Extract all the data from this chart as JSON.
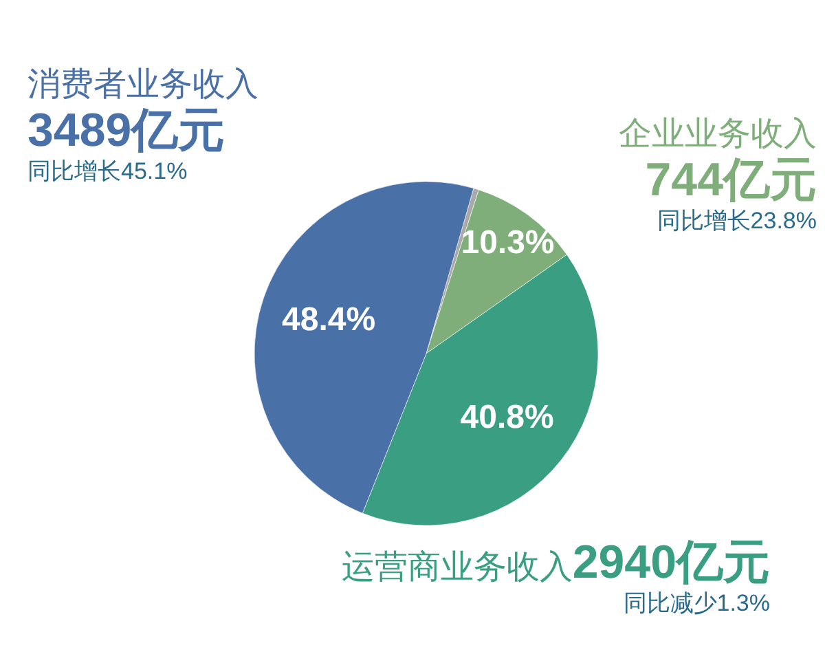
{
  "chart_data": {
    "type": "pie",
    "categories": [
      null,
      "企业业务收入",
      "运营商业务收入",
      "消费者业务收入"
    ],
    "values": [
      0.5,
      10.3,
      40.8,
      48.4
    ],
    "colors": [
      "#a9a9a9",
      "#7fae7a",
      "#3a9e82",
      "#4a70a8"
    ],
    "value_labels": [
      null,
      "10.3%",
      "40.8%",
      "48.4%"
    ],
    "annotations": [
      "744亿元",
      "同比增长23.8%",
      "2940亿元",
      "同比减少1.3%",
      "3489亿元",
      "同比增长45.1%"
    ]
  }
}
